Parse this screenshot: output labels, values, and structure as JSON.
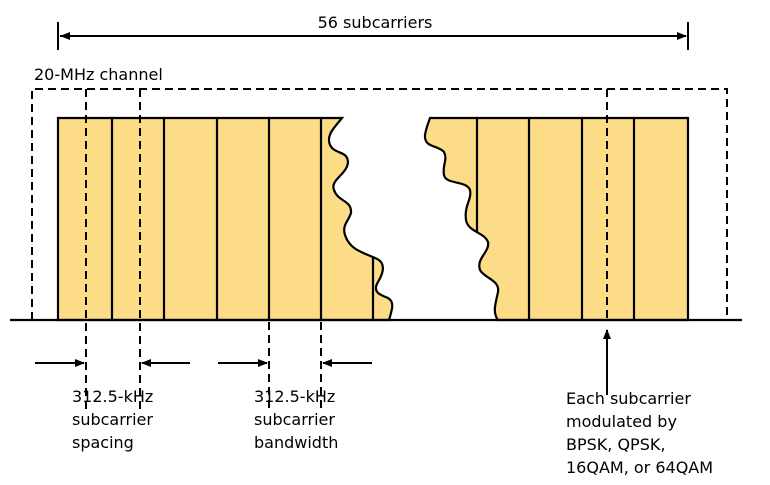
{
  "top_span_label": "56 subcarriers",
  "channel_label": "20-MHz channel",
  "spacing_label": [
    "312.5-kHz",
    "subcarrier",
    "spacing"
  ],
  "bandwidth_label": [
    "312.5-kHz",
    "subcarrier",
    "bandwidth"
  ],
  "modulation_label": [
    "Each subcarrier",
    "modulated by",
    "BPSK, QPSK,",
    "16QAM, or 64QAM"
  ],
  "colors": {
    "subcarrier_fill": "#fddc87",
    "stroke": "#000000"
  }
}
